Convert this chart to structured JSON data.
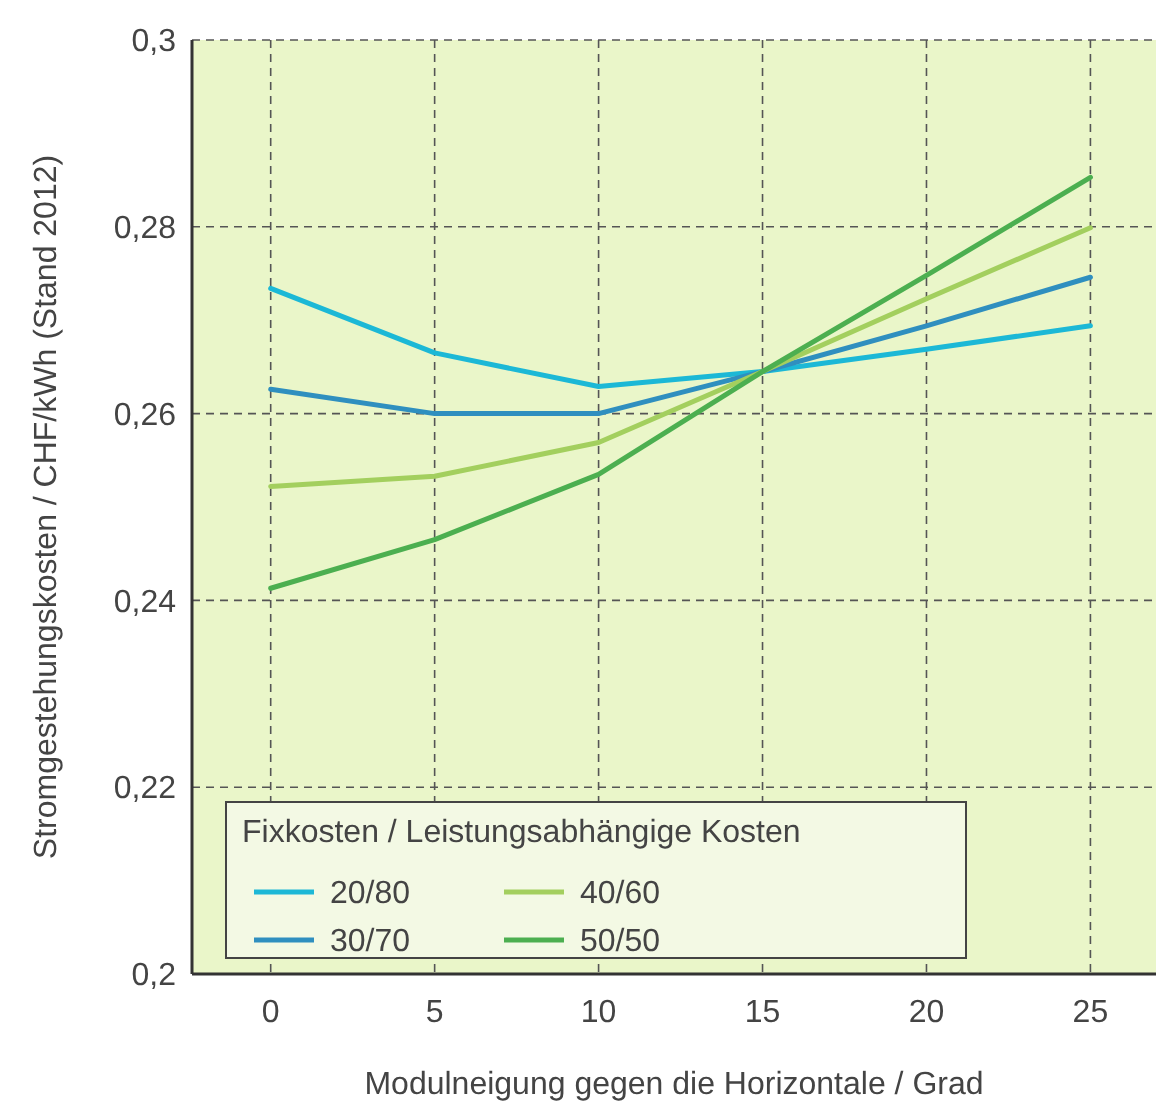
{
  "chart_data": {
    "type": "line",
    "xlabel": "Modulneigung gegen die Horizontale / Grad",
    "ylabel": "Stromgestehungskosten / CHF/kWh (Stand 2012)",
    "legend_title": "Fixkosten / Leistungsabhängige Kosten",
    "x": [
      0,
      5,
      10,
      15,
      20,
      25
    ],
    "series": [
      {
        "name": "20/80",
        "color": "#1cb8d6",
        "values": [
          0.2734,
          0.2665,
          0.2629,
          0.2645,
          0.2669,
          0.2694
        ]
      },
      {
        "name": "30/70",
        "color": "#2f8fbf",
        "values": [
          0.2626,
          0.26,
          0.26,
          0.2645,
          0.2694,
          0.2746
        ]
      },
      {
        "name": "40/60",
        "color": "#a3cf5e",
        "values": [
          0.2522,
          0.2533,
          0.2569,
          0.2645,
          0.2723,
          0.2799
        ]
      },
      {
        "name": "50/50",
        "color": "#4caf50",
        "values": [
          0.2413,
          0.2465,
          0.2535,
          0.2645,
          0.2748,
          0.2853
        ]
      }
    ],
    "xlim": [
      -2.4,
      27
    ],
    "xticks": [
      0,
      5,
      10,
      15,
      20,
      25
    ],
    "ylim": [
      0.2,
      0.3
    ],
    "yticks": [
      {
        "value": 0.2,
        "label": "0,2"
      },
      {
        "value": 0.22,
        "label": "0,22"
      },
      {
        "value": 0.24,
        "label": "0,24"
      },
      {
        "value": 0.26,
        "label": "0,26"
      },
      {
        "value": 0.28,
        "label": "0,28"
      },
      {
        "value": 0.3,
        "label": "0,3"
      }
    ],
    "grid": true,
    "legend": "bottom left",
    "marker": "none",
    "line_style": "solid"
  }
}
